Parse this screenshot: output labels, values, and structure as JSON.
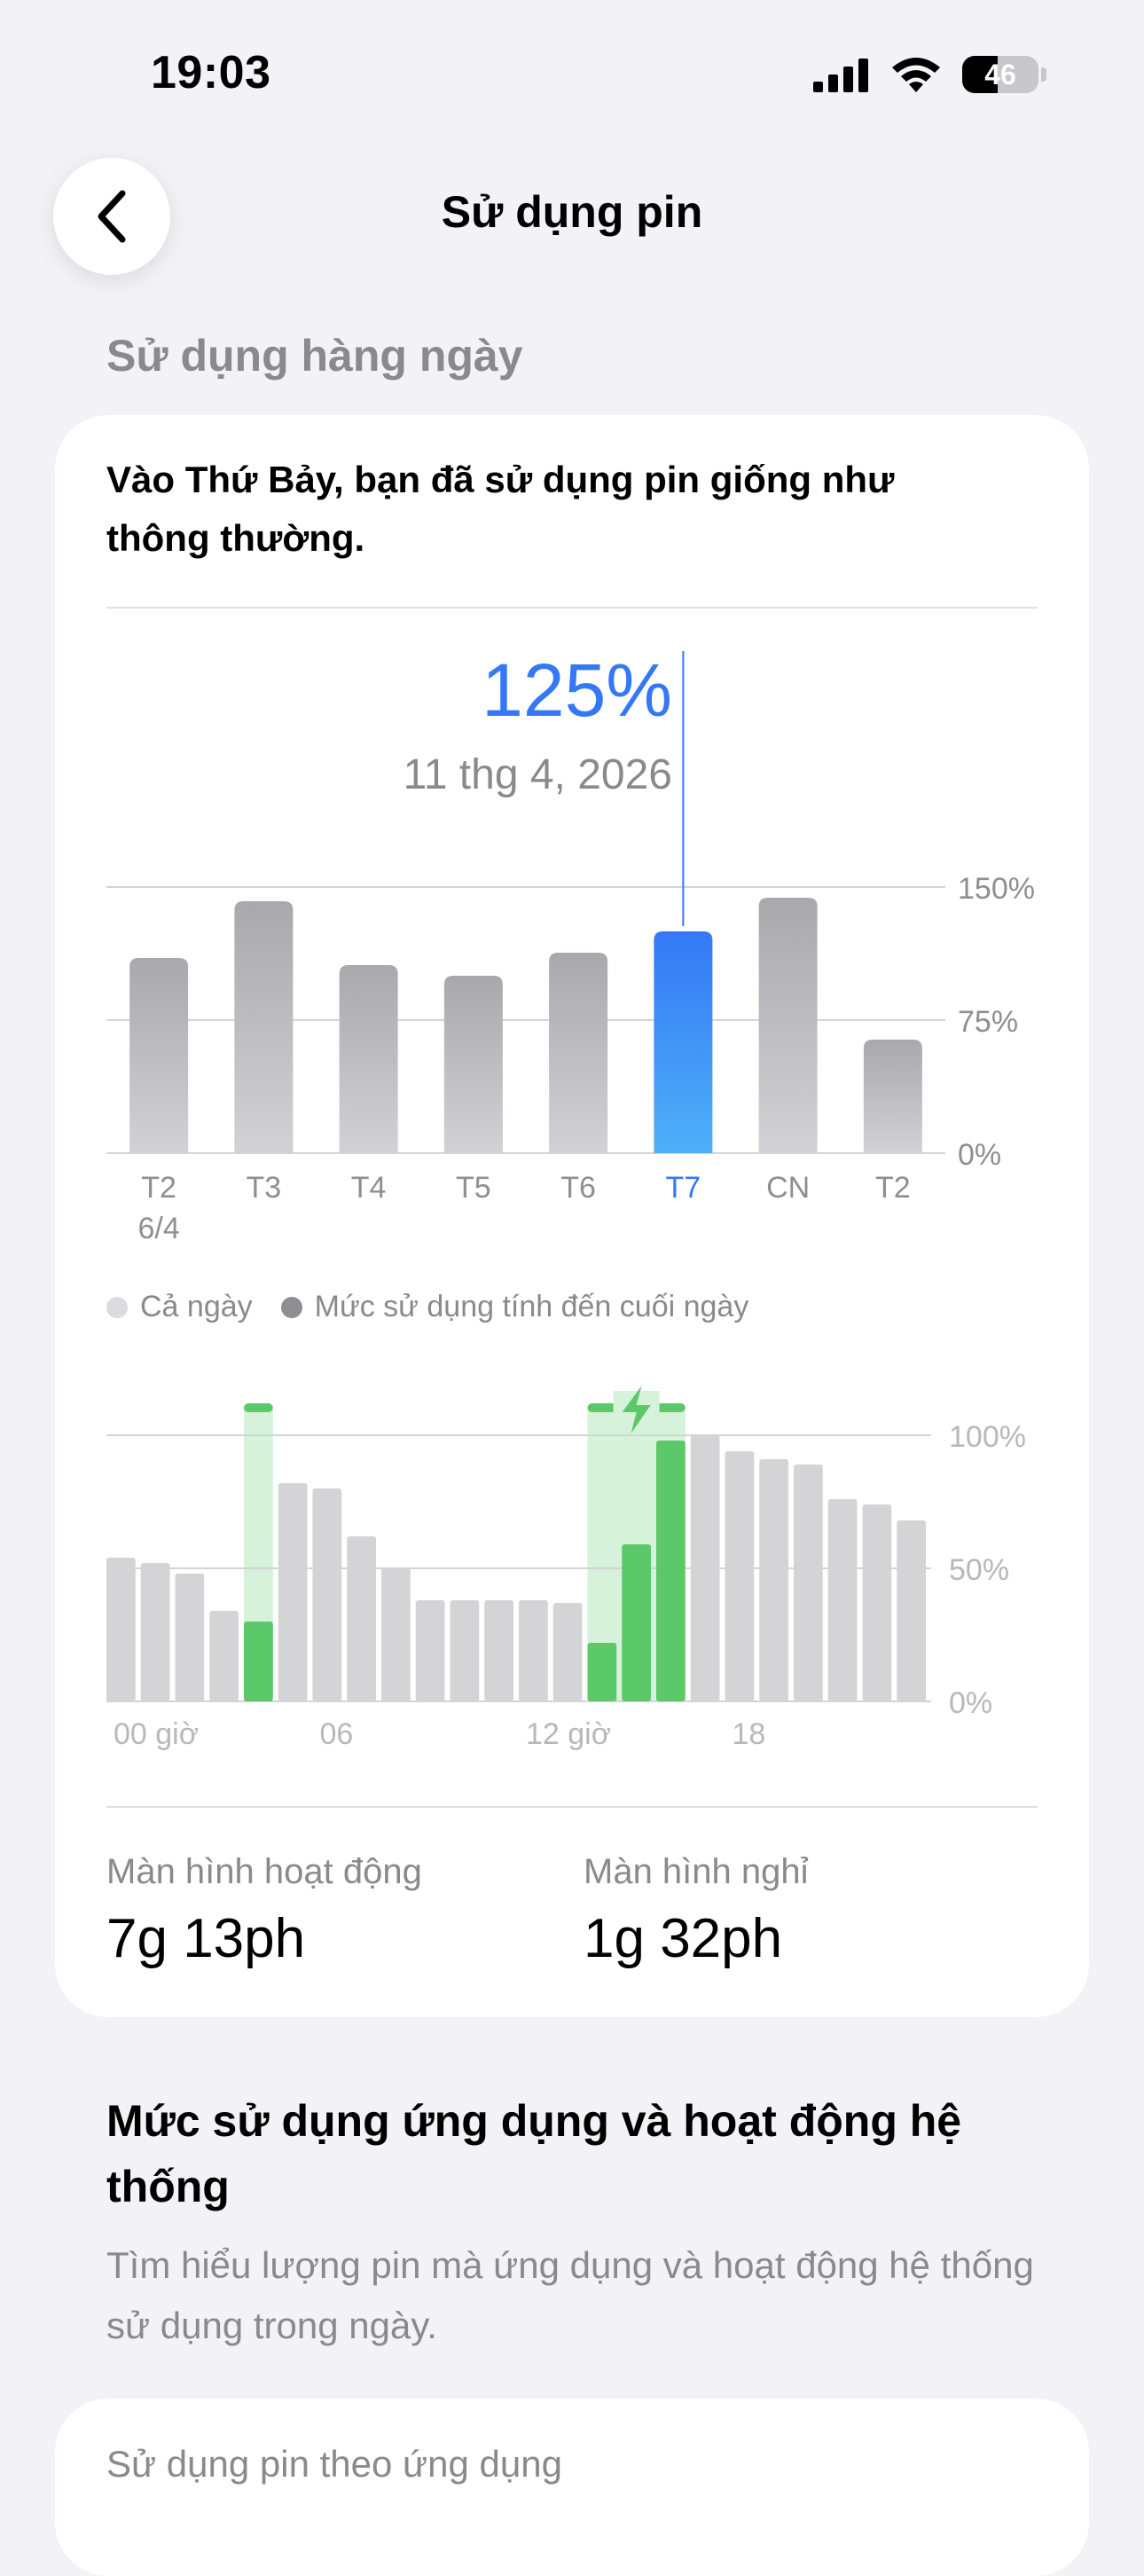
{
  "status_bar": {
    "time": "19:03",
    "battery_level": "46",
    "battery_fraction": 0.46
  },
  "nav": {
    "title": "Sử dụng pin"
  },
  "daily": {
    "section_title": "Sử dụng hàng ngày",
    "summary": "Vào Thứ Bảy, bạn đã sử dụng pin giống như thông thường.",
    "selected_value": "125%",
    "selected_date": "11 thg 4, 2026"
  },
  "legend": {
    "all_day": "Cả ngày",
    "end_of_day": "Mức sử dụng tính đến cuối ngày"
  },
  "stats": {
    "screen_on_label": "Màn hình hoạt động",
    "screen_on_value": "7g 13ph",
    "screen_off_label": "Màn hình nghỉ",
    "screen_off_value": "1g 32ph"
  },
  "apps_section": {
    "title": "Mức sử dụng ứng dụng và hoạt động hệ thống",
    "description": "Tìm hiểu lượng pin mà ứng dụng và hoạt động hệ thống sử dụng trong ngày.",
    "card_title": "Sử dụng pin theo ứng dụng"
  },
  "colors": {
    "accent": "#3478f6",
    "bar_gray": "#b0b0b4",
    "level_gray": "#d4d4d6",
    "charging_green": "#5bc86a",
    "charging_band": "#d6f2da"
  },
  "chart_data": [
    {
      "type": "bar",
      "categories": [
        "T2",
        "T3",
        "T4",
        "T5",
        "T6",
        "T7",
        "CN",
        "T2"
      ],
      "category_sublabels": [
        "6/4",
        "",
        "",
        "",
        "",
        "",
        "",
        ""
      ],
      "values": [
        110,
        142,
        106,
        100,
        113,
        125,
        144,
        64
      ],
      "selected_index": 5,
      "y_ticks": [
        "150%",
        "75%",
        "0%"
      ],
      "ylim": [
        0,
        150
      ]
    },
    {
      "type": "bar",
      "x_ticks": [
        "00 giờ",
        "06",
        "12 giờ",
        "18"
      ],
      "y_ticks": [
        "100%",
        "50%",
        "0%"
      ],
      "ylim": [
        0,
        100
      ],
      "battery_level": [
        54,
        52,
        48,
        34,
        30,
        82,
        80,
        62,
        50,
        38,
        38,
        38,
        38,
        37,
        22,
        59,
        98,
        100,
        94,
        91,
        89,
        76,
        74,
        68
      ],
      "charging_hours": [
        4,
        14,
        15,
        16
      ]
    }
  ]
}
